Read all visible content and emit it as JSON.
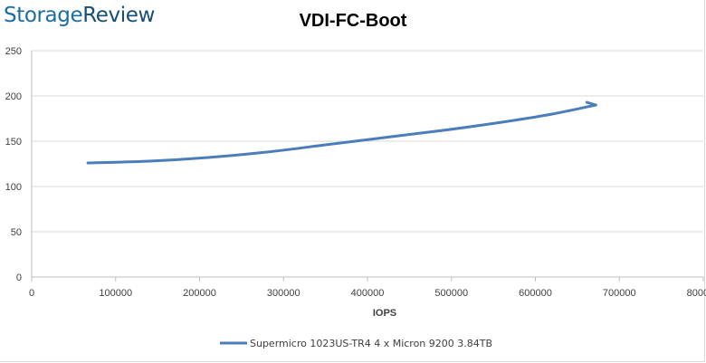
{
  "logo": {
    "part1": "Storage",
    "part2": "Review"
  },
  "chart_data": {
    "type": "line",
    "title": "VDI-FC-Boot",
    "xlabel": "IOPS",
    "ylabel": "",
    "xlim": [
      0,
      800000
    ],
    "ylim": [
      0,
      250
    ],
    "x_ticks": [
      "0",
      "100000",
      "200000",
      "300000",
      "400000",
      "500000",
      "600000",
      "700000",
      "800000"
    ],
    "y_ticks": [
      "0",
      "50",
      "100",
      "150",
      "200",
      "250"
    ],
    "grid": true,
    "legend_position": "bottom",
    "series": [
      {
        "name": "Supermicro 1023US-TR4 4 x Micron 9200 3.84TB",
        "color": "#4a7ebb",
        "x": [
          67000,
          140000,
          210000,
          280000,
          350000,
          420000,
          490000,
          560000,
          620000,
          672000
        ],
        "y": [
          126,
          128,
          132,
          138,
          146,
          154,
          162,
          171,
          180,
          190
        ]
      }
    ]
  }
}
